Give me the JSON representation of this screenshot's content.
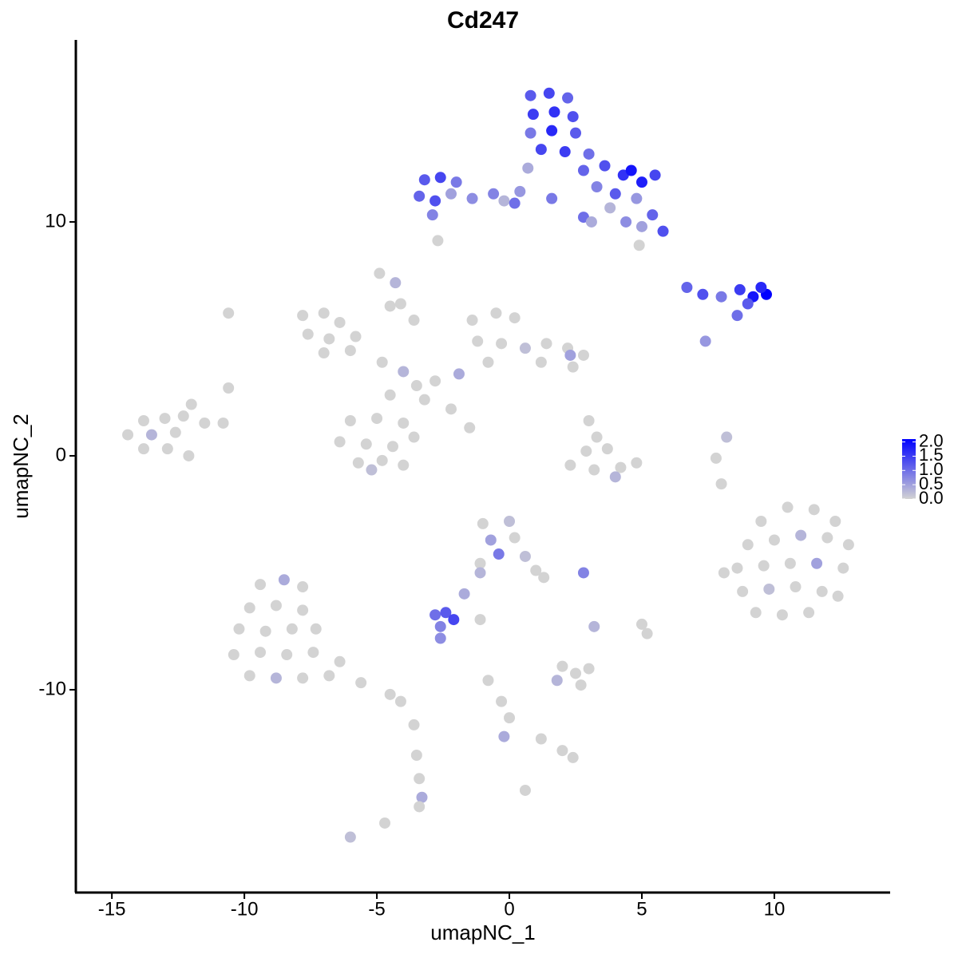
{
  "chart_data": {
    "type": "scatter",
    "title": "Cd247",
    "x_label": "umapNC_1",
    "y_label": "umapNC_2",
    "xlim": [
      -16.36,
      14.37
    ],
    "ylim": [
      -18.67,
      17.78
    ],
    "xticks": [
      -15,
      -10,
      -5,
      0,
      5,
      10
    ],
    "yticks": [
      -10,
      0,
      10
    ],
    "color_low": "#d3d3d3",
    "color_high": "#0000ff",
    "color_lim": [
      0,
      2.1
    ],
    "color_ticks": [
      {
        "value": 0,
        "label": "0.0"
      },
      {
        "value": 0.5,
        "label": "0.5"
      },
      {
        "value": 1,
        "label": "1.0"
      },
      {
        "value": 1.5,
        "label": "1.5"
      },
      {
        "value": 2,
        "label": "2.0"
      }
    ],
    "x": [
      0.8,
      1.5,
      2.2,
      0.9,
      1.7,
      2.4,
      0.8,
      1.6,
      2.5,
      1.2,
      2.1,
      3.0,
      3.6,
      4.3,
      5.0,
      5.5,
      4.6,
      2.8,
      3.3,
      4.0,
      4.8,
      5.4,
      5.8,
      5.0,
      4.4,
      3.8,
      4.9,
      0.7,
      1.6,
      0.4,
      -3.2,
      -2.6,
      -2.0,
      -3.4,
      -2.8,
      -2.2,
      -1.4,
      -0.6,
      -0.2,
      0.2,
      -2.9,
      2.8,
      -2.7,
      3.1,
      6.7,
      7.3,
      8.0,
      8.7,
      9.2,
      9.7,
      9.5,
      8.6,
      7.4,
      9.0,
      -7.8,
      -7.0,
      -6.4,
      -7.6,
      -6.8,
      -5.8,
      -7.0,
      -6.0,
      -4.8,
      -4.0,
      -3.5,
      -2.8,
      -3.2,
      -4.5,
      -2.2,
      -1.5,
      -4.3,
      -4.5,
      -3.6,
      -6.0,
      -5.0,
      -4.0,
      -6.4,
      -5.4,
      -4.4,
      -3.6,
      -5.7,
      -4.8,
      -4.0,
      -5.2,
      -1.4,
      -0.5,
      0.2,
      -1.2,
      -0.3,
      0.6,
      1.4,
      2.2,
      2.8,
      1.2,
      2.4,
      -0.8,
      2.3,
      -1.9,
      -13.8,
      -13.0,
      -12.3,
      -14.4,
      -13.5,
      -12.6,
      -11.5,
      -12.0,
      -13.8,
      -12.9,
      -12.1,
      -10.6,
      -10.8,
      3.0,
      3.3,
      2.9,
      3.7,
      3.2,
      4.2,
      4.0,
      2.3,
      4.8,
      9.5,
      10.5,
      11.5,
      12.3,
      9.0,
      10.0,
      11.0,
      12.0,
      12.8,
      8.6,
      9.6,
      10.6,
      11.6,
      12.6,
      8.8,
      9.8,
      10.8,
      11.8,
      12.4,
      9.3,
      10.3,
      11.3,
      8.1,
      7.8,
      8.2,
      8.0,
      -1.0,
      0.0,
      -0.7,
      0.2,
      -0.4,
      0.6,
      -1.1,
      1.0,
      1.3,
      -1.1,
      -1.7,
      -2.8,
      -2.4,
      -2.1,
      -2.6,
      -2.6,
      -1.1,
      2.8,
      3.2,
      -9.4,
      -8.5,
      -7.8,
      -9.8,
      -8.8,
      -7.8,
      -10.2,
      -9.2,
      -8.2,
      -7.3,
      -10.4,
      -9.4,
      -8.4,
      -7.4,
      -6.4,
      -9.8,
      -8.8,
      -7.8,
      -6.8,
      -5.6,
      -4.5,
      -4.1,
      -3.6,
      -3.5,
      -3.4,
      -3.3,
      -3.4,
      -4.7,
      -6.0,
      2.0,
      2.5,
      3.0,
      1.8,
      2.7,
      5.0,
      5.2,
      -0.8,
      -0.3,
      0.0,
      -0.2,
      1.2,
      2.0,
      2.4,
      0.6,
      -4.9,
      -4.1,
      -10.6
    ],
    "y": [
      15.4,
      15.5,
      15.3,
      14.6,
      14.7,
      14.5,
      13.8,
      13.9,
      13.8,
      13.1,
      13.0,
      12.9,
      12.4,
      12.0,
      11.7,
      12.0,
      12.2,
      12.2,
      11.5,
      11.2,
      11.0,
      10.3,
      9.6,
      9.8,
      10.0,
      10.6,
      9.0,
      12.3,
      11.0,
      11.3,
      11.8,
      11.9,
      11.7,
      11.1,
      10.9,
      11.2,
      11.0,
      11.2,
      10.9,
      10.8,
      10.3,
      10.2,
      9.2,
      10.0,
      7.2,
      6.9,
      6.8,
      7.1,
      6.8,
      6.9,
      7.2,
      6.0,
      4.9,
      6.5,
      6.0,
      6.1,
      5.7,
      5.2,
      5.0,
      5.1,
      4.4,
      4.5,
      4.0,
      3.6,
      3.0,
      3.2,
      2.4,
      2.6,
      2.0,
      1.2,
      7.4,
      6.4,
      5.8,
      1.5,
      1.6,
      1.4,
      0.6,
      0.5,
      0.4,
      0.8,
      -0.3,
      -0.2,
      -0.4,
      -0.6,
      5.8,
      6.1,
      5.9,
      4.9,
      4.8,
      4.6,
      4.8,
      4.6,
      4.3,
      4.0,
      3.8,
      4.0,
      4.3,
      3.5,
      1.5,
      1.6,
      1.7,
      0.9,
      0.9,
      1.0,
      1.4,
      2.2,
      0.3,
      0.3,
      0.0,
      2.9,
      1.4,
      1.5,
      0.8,
      0.2,
      0.3,
      -0.6,
      -0.5,
      -0.9,
      -0.4,
      -0.3,
      -2.8,
      -2.2,
      -2.3,
      -2.8,
      -3.8,
      -3.6,
      -3.4,
      -3.5,
      -3.8,
      -4.8,
      -4.7,
      -4.6,
      -4.6,
      -4.8,
      -5.8,
      -5.7,
      -5.6,
      -5.8,
      -6.0,
      -6.7,
      -6.8,
      -6.7,
      -5.0,
      -0.1,
      0.8,
      -1.2,
      -2.9,
      -2.8,
      -3.6,
      -3.5,
      -4.2,
      -4.3,
      -4.6,
      -4.9,
      -5.2,
      -5.0,
      -5.9,
      -6.8,
      -6.7,
      -7.0,
      -7.3,
      -7.8,
      -7.0,
      -5.0,
      -7.3,
      -5.5,
      -5.3,
      -5.6,
      -6.5,
      -6.4,
      -6.6,
      -7.4,
      -7.5,
      -7.4,
      -7.4,
      -8.5,
      -8.4,
      -8.5,
      -8.4,
      -8.8,
      -9.4,
      -9.5,
      -9.5,
      -9.4,
      -9.7,
      -10.2,
      -10.5,
      -11.5,
      -12.8,
      -13.8,
      -14.6,
      -15.0,
      -15.7,
      -16.3,
      -9.0,
      -9.3,
      -9.1,
      -9.6,
      -9.8,
      -7.2,
      -7.6,
      -9.6,
      -10.5,
      -11.2,
      -12.0,
      -12.1,
      -12.6,
      -12.9,
      -14.3,
      7.8,
      6.5,
      6.1
    ],
    "expression": [
      1.2,
      1.4,
      1.1,
      1.5,
      1.6,
      1.3,
      0.9,
      1.7,
      1.2,
      1.4,
      1.5,
      1.0,
      1.3,
      1.6,
      1.8,
      1.4,
      1.9,
      1.1,
      0.8,
      1.2,
      0.6,
      1.1,
      1.3,
      0.5,
      0.7,
      0.3,
      0,
      0.4,
      0.9,
      0.6,
      1.2,
      1.4,
      0.9,
      1.1,
      1.3,
      0.5,
      0.7,
      0.8,
      0.3,
      1.0,
      0.8,
      1.0,
      0,
      0.4,
      1.1,
      1.3,
      0.9,
      1.5,
      1.9,
      2.1,
      1.7,
      1.0,
      0.6,
      1.2,
      0,
      0,
      0,
      0,
      0,
      0,
      0,
      0,
      0,
      0.3,
      0,
      0,
      0,
      0,
      0,
      0,
      0.3,
      0,
      0,
      0,
      0,
      0,
      0,
      0,
      0,
      0,
      0,
      0,
      0,
      0.2,
      0,
      0,
      0,
      0,
      0,
      0.2,
      0,
      0,
      0,
      0,
      0,
      0,
      0.5,
      0.4,
      0,
      0,
      0,
      0,
      0.3,
      0,
      0,
      0,
      0,
      0,
      0,
      0,
      0,
      0,
      0,
      0,
      0,
      0,
      0,
      0.3,
      0,
      0,
      0,
      0,
      0,
      0,
      0,
      0,
      0.3,
      0,
      0,
      0,
      0,
      0,
      0.5,
      0,
      0,
      0.2,
      0,
      0,
      0,
      0,
      0,
      0,
      0,
      0,
      0.2,
      0,
      0,
      0.2,
      0.5,
      0,
      0.9,
      0.2,
      0,
      0,
      0,
      0.3,
      0.4,
      1.0,
      1.2,
      1.4,
      0.8,
      0.7,
      0,
      0.8,
      0.3,
      0,
      0.4,
      0,
      0,
      0,
      0,
      0,
      0,
      0,
      0,
      0,
      0,
      0,
      0,
      0,
      0,
      0.3,
      0,
      0,
      0,
      0,
      0,
      0,
      0,
      0,
      0.4,
      0,
      0,
      0.2,
      0,
      0,
      0,
      0.3,
      0,
      0,
      0,
      0,
      0,
      0,
      0.4,
      0,
      0,
      0,
      0,
      0,
      0,
      0
    ]
  }
}
